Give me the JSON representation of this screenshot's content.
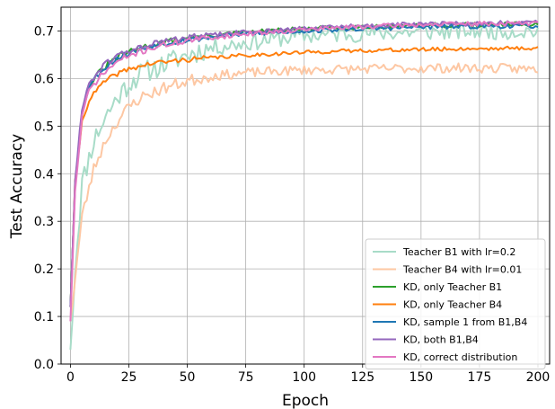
{
  "chart_data": {
    "type": "line",
    "xlabel": "Epoch",
    "ylabel": "Test Accuracy",
    "xlim": [
      -4,
      205
    ],
    "ylim": [
      0.0,
      0.75
    ],
    "xticks": [
      0,
      25,
      50,
      75,
      100,
      125,
      150,
      175,
      200
    ],
    "yticks": [
      0.0,
      0.1,
      0.2,
      0.3,
      0.4,
      0.5,
      0.6,
      0.7
    ],
    "grid": true,
    "legend_position": "lower-right",
    "series": [
      {
        "name": "Teacher B1 with lr=0.2",
        "color": "#a8dcc8",
        "keypoints": [
          [
            0,
            0.03
          ],
          [
            2,
            0.2
          ],
          [
            5,
            0.38
          ],
          [
            10,
            0.47
          ],
          [
            15,
            0.52
          ],
          [
            20,
            0.56
          ],
          [
            25,
            0.59
          ],
          [
            30,
            0.61
          ],
          [
            40,
            0.63
          ],
          [
            50,
            0.65
          ],
          [
            60,
            0.665
          ],
          [
            75,
            0.675
          ],
          [
            90,
            0.685
          ],
          [
            100,
            0.69
          ],
          [
            125,
            0.695
          ],
          [
            150,
            0.698
          ],
          [
            175,
            0.7
          ],
          [
            200,
            0.7
          ]
        ],
        "noise": 0.018,
        "seed": 11
      },
      {
        "name": "Teacher B4 with lr=0.01",
        "color": "#fdc7a3",
        "keypoints": [
          [
            0,
            0.09
          ],
          [
            2,
            0.18
          ],
          [
            5,
            0.31
          ],
          [
            10,
            0.41
          ],
          [
            15,
            0.47
          ],
          [
            20,
            0.51
          ],
          [
            25,
            0.54
          ],
          [
            30,
            0.56
          ],
          [
            40,
            0.58
          ],
          [
            50,
            0.595
          ],
          [
            60,
            0.605
          ],
          [
            75,
            0.612
          ],
          [
            100,
            0.618
          ],
          [
            125,
            0.62
          ],
          [
            150,
            0.622
          ],
          [
            175,
            0.622
          ],
          [
            200,
            0.62
          ]
        ],
        "noise": 0.01,
        "seed": 23
      },
      {
        "name": "KD, only Teacher B1",
        "color": "#2ca02c",
        "keypoints": [
          [
            0,
            0.12
          ],
          [
            2,
            0.38
          ],
          [
            5,
            0.53
          ],
          [
            8,
            0.585
          ],
          [
            12,
            0.61
          ],
          [
            15,
            0.625
          ],
          [
            20,
            0.645
          ],
          [
            25,
            0.655
          ],
          [
            35,
            0.672
          ],
          [
            50,
            0.685
          ],
          [
            75,
            0.697
          ],
          [
            100,
            0.704
          ],
          [
            125,
            0.709
          ],
          [
            150,
            0.712
          ],
          [
            175,
            0.713
          ],
          [
            200,
            0.714
          ]
        ],
        "noise": 0.005,
        "seed": 31
      },
      {
        "name": "KD, only Teacher B4",
        "color": "#ff7f0e",
        "keypoints": [
          [
            0,
            0.12
          ],
          [
            2,
            0.38
          ],
          [
            5,
            0.51
          ],
          [
            8,
            0.555
          ],
          [
            12,
            0.58
          ],
          [
            15,
            0.595
          ],
          [
            20,
            0.61
          ],
          [
            25,
            0.62
          ],
          [
            35,
            0.632
          ],
          [
            50,
            0.64
          ],
          [
            75,
            0.649
          ],
          [
            100,
            0.655
          ],
          [
            125,
            0.659
          ],
          [
            150,
            0.661
          ],
          [
            175,
            0.663
          ],
          [
            200,
            0.664
          ]
        ],
        "noise": 0.004,
        "seed": 41
      },
      {
        "name": "KD, sample 1 from B1,B4",
        "color": "#1f77b4",
        "keypoints": [
          [
            0,
            0.12
          ],
          [
            2,
            0.38
          ],
          [
            5,
            0.53
          ],
          [
            8,
            0.585
          ],
          [
            12,
            0.61
          ],
          [
            15,
            0.625
          ],
          [
            20,
            0.643
          ],
          [
            25,
            0.653
          ],
          [
            35,
            0.67
          ],
          [
            50,
            0.682
          ],
          [
            75,
            0.694
          ],
          [
            100,
            0.7
          ],
          [
            125,
            0.705
          ],
          [
            150,
            0.708
          ],
          [
            175,
            0.71
          ],
          [
            200,
            0.711
          ]
        ],
        "noise": 0.005,
        "seed": 53
      },
      {
        "name": "KD, both B1,B4",
        "color": "#9467bd",
        "keypoints": [
          [
            0,
            0.12
          ],
          [
            2,
            0.38
          ],
          [
            5,
            0.54
          ],
          [
            8,
            0.59
          ],
          [
            12,
            0.615
          ],
          [
            15,
            0.63
          ],
          [
            20,
            0.648
          ],
          [
            25,
            0.658
          ],
          [
            35,
            0.673
          ],
          [
            50,
            0.686
          ],
          [
            75,
            0.698
          ],
          [
            100,
            0.705
          ],
          [
            125,
            0.711
          ],
          [
            150,
            0.714
          ],
          [
            175,
            0.716
          ],
          [
            200,
            0.717
          ]
        ],
        "noise": 0.005,
        "seed": 61
      },
      {
        "name": "KD, correct distribution",
        "color": "#e377c2",
        "keypoints": [
          [
            0,
            0.09
          ],
          [
            2,
            0.36
          ],
          [
            5,
            0.52
          ],
          [
            8,
            0.575
          ],
          [
            12,
            0.6
          ],
          [
            15,
            0.615
          ],
          [
            20,
            0.635
          ],
          [
            25,
            0.648
          ],
          [
            35,
            0.665
          ],
          [
            50,
            0.68
          ],
          [
            75,
            0.694
          ],
          [
            100,
            0.703
          ],
          [
            125,
            0.709
          ],
          [
            150,
            0.713
          ],
          [
            175,
            0.715
          ],
          [
            200,
            0.716
          ]
        ],
        "noise": 0.005,
        "seed": 71
      }
    ]
  }
}
